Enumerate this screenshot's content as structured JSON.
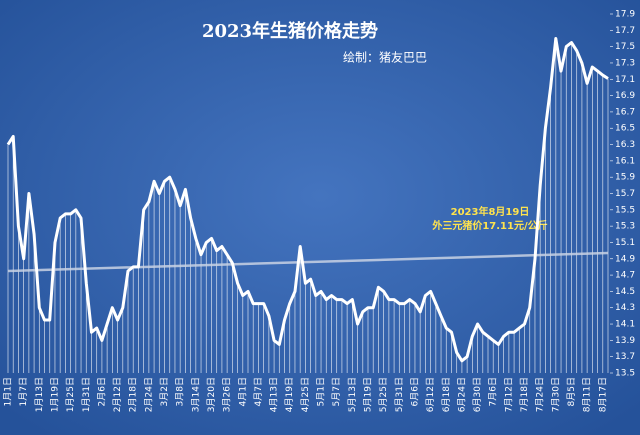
{
  "chart_data": {
    "type": "line",
    "title": "2023年生猪价格走势",
    "subtitle": "绘制：猪友巴巴",
    "annotations": [
      "2023年8月19日",
      "外三元猪价17.11元/公斤"
    ],
    "categories": [
      "1月1日",
      null,
      null,
      "1月7日",
      null,
      null,
      "1月13日",
      null,
      null,
      "1月19日",
      null,
      null,
      "1月25日",
      null,
      null,
      "1月31日",
      null,
      null,
      "2月6日",
      null,
      null,
      "2月12日",
      null,
      null,
      "2月18日",
      null,
      null,
      "2月24日",
      null,
      null,
      "3月2日",
      null,
      null,
      "3月8日",
      null,
      null,
      "3月14日",
      null,
      null,
      "3月20日",
      null,
      null,
      "3月26日",
      null,
      null,
      "4月1日",
      null,
      null,
      "4月7日",
      null,
      null,
      "4月13日",
      null,
      null,
      "4月19日",
      null,
      null,
      "4月25日",
      null,
      null,
      "5月1日",
      null,
      null,
      "5月7日",
      null,
      null,
      "5月13日",
      null,
      null,
      "5月19日",
      null,
      null,
      "5月25日",
      null,
      null,
      "5月31日",
      null,
      null,
      "6月6日",
      null,
      null,
      "6月12日",
      null,
      null,
      "6月18日",
      null,
      null,
      "6月24日",
      null,
      null,
      "6月30日",
      null,
      null,
      "7月6日",
      null,
      null,
      "7月12日",
      null,
      null,
      "7月18日",
      null,
      null,
      "7月24日",
      null,
      null,
      "7月30日",
      null,
      null,
      "8月5日",
      null,
      null,
      "8月11日",
      null,
      null,
      "8月17日",
      null
    ],
    "values": [
      16.3,
      16.4,
      15.3,
      14.9,
      15.7,
      15.2,
      14.3,
      14.15,
      14.15,
      15.1,
      15.4,
      15.45,
      15.45,
      15.5,
      15.4,
      14.6,
      14.0,
      14.05,
      13.9,
      14.1,
      14.3,
      14.15,
      14.3,
      14.75,
      14.8,
      14.8,
      15.5,
      15.6,
      15.85,
      15.7,
      15.85,
      15.9,
      15.75,
      15.55,
      15.75,
      15.4,
      15.15,
      14.95,
      15.1,
      15.15,
      15.0,
      15.05,
      14.95,
      14.85,
      14.6,
      14.45,
      14.5,
      14.35,
      14.35,
      14.35,
      14.2,
      13.9,
      13.85,
      14.15,
      14.35,
      14.5,
      15.05,
      14.6,
      14.65,
      14.45,
      14.5,
      14.4,
      14.45,
      14.4,
      14.4,
      14.35,
      14.4,
      14.1,
      14.25,
      14.3,
      14.3,
      14.55,
      14.5,
      14.4,
      14.4,
      14.35,
      14.35,
      14.4,
      14.35,
      14.25,
      14.45,
      14.5,
      14.35,
      14.2,
      14.05,
      14.0,
      13.75,
      13.65,
      13.7,
      13.95,
      14.1,
      14.0,
      13.95,
      13.9,
      13.85,
      13.95,
      14.0,
      14.0,
      14.05,
      14.1,
      14.3,
      14.9,
      15.8,
      16.5,
      17.0,
      17.6,
      17.2,
      17.5,
      17.55,
      17.45,
      17.3,
      17.05,
      17.25,
      17.2,
      17.15,
      17.11
    ],
    "color": "#ffffff",
    "trend": [
      14.75,
      14.97
    ],
    "trend_color": "#c8d2e4",
    "ylim": [
      13.5,
      17.9
    ],
    "yticks": [
      13.5,
      13.7,
      13.9,
      14.1,
      14.3,
      14.5,
      14.7,
      14.9,
      15.1,
      15.3,
      15.5,
      15.7,
      15.9,
      16.1,
      16.3,
      16.5,
      16.7,
      16.9,
      17.1,
      17.3,
      17.5,
      17.7,
      17.9
    ],
    "annotation_color": "#ffe34d"
  }
}
